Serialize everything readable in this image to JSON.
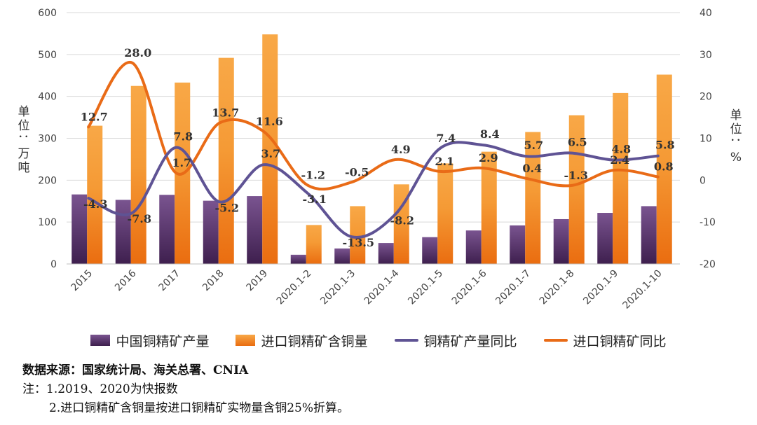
{
  "chart_data": {
    "type": "bar",
    "categories": [
      "2015",
      "2016",
      "2017",
      "2018",
      "2019",
      "2020.1-2",
      "2020.1-3",
      "2020.1-4",
      "2020.1-5",
      "2020.1-6",
      "2020.1-7",
      "2020.1-8",
      "2020.1-9",
      "2020.1-10"
    ],
    "ylabel_left": "单位：万吨",
    "ylabel_right": "单位：%",
    "ylim_left": [
      0,
      600
    ],
    "yticks_left": [
      "0",
      "100",
      "200",
      "300",
      "400",
      "500",
      "600"
    ],
    "ylim_right": [
      -20,
      40
    ],
    "yticks_right": [
      "-20",
      "-10",
      "0",
      "10",
      "20",
      "30",
      "40"
    ],
    "grid": true,
    "legend_position": "bottom",
    "series": [
      {
        "name": "中国铜精矿产量",
        "kind": "bar",
        "axis": "left",
        "color": "#5a2d6b",
        "values": [
          166,
          153,
          165,
          151,
          162,
          22,
          37,
          50,
          64,
          80,
          92,
          107,
          122,
          138
        ]
      },
      {
        "name": "进口铜精矿含铜量",
        "kind": "bar",
        "axis": "left",
        "color": "#f07f19",
        "values": [
          330,
          425,
          433,
          492,
          548,
          93,
          138,
          190,
          240,
          268,
          315,
          355,
          408,
          452
        ]
      },
      {
        "name": "铜精矿产量同比",
        "kind": "line",
        "axis": "right",
        "color": "#5f5394",
        "values": [
          -4.3,
          -7.8,
          7.8,
          -5.2,
          3.7,
          -3.1,
          -13.5,
          -8.2,
          7.4,
          8.4,
          5.7,
          6.5,
          4.8,
          5.8
        ]
      },
      {
        "name": "进口铜精矿同比",
        "kind": "line",
        "axis": "right",
        "color": "#e96b17",
        "values": [
          12.7,
          28.0,
          1.7,
          13.7,
          11.6,
          -1.2,
          -0.5,
          4.9,
          2.1,
          2.9,
          0.4,
          -1.3,
          2.4,
          0.8
        ]
      }
    ],
    "labels_production_yoy": [
      "-4.3",
      "-7.8",
      "7.8",
      "-5.2",
      "3.7",
      "-3.1",
      "-13.5",
      "-8.2",
      "7.4",
      "8.4",
      "5.7",
      "6.5",
      "4.8",
      "5.8"
    ],
    "labels_import_yoy": [
      "12.7",
      "28.0",
      "1.7",
      "13.7",
      "11.6",
      "-1.2",
      "-0.5",
      "4.9",
      "2.1",
      "2.9",
      "0.4",
      "-1.3",
      "2.4",
      "0.8"
    ]
  },
  "legend": {
    "item1": "中国铜精矿产量",
    "item2": "进口铜精矿含铜量",
    "item3": "铜精矿产量同比",
    "item4": "进口铜精矿同比"
  },
  "notes": {
    "source": "数据来源：国家统计局、海关总署、CNIA",
    "note1": "注：1.2019、2020为快报数",
    "note2": "2.进口铜精矿含铜量按进口铜精矿实物量含铜25%折算。"
  }
}
